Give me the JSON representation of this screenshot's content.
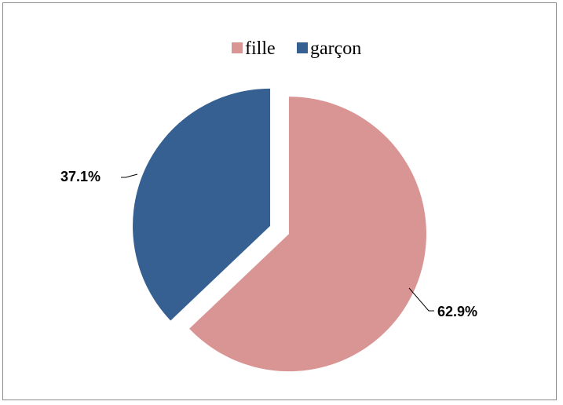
{
  "chart_data": {
    "type": "pie",
    "title": "",
    "legend_placement": "top",
    "series": [
      {
        "values": [
          62.9,
          37.1
        ]
      }
    ],
    "categories": [
      "fille",
      "garçon"
    ],
    "values": [
      62.9,
      37.1
    ],
    "data_labels": [
      "62.9%",
      "37.1%"
    ],
    "colors": [
      "#D99594",
      "#366092"
    ],
    "exploded": true
  }
}
